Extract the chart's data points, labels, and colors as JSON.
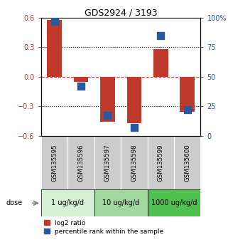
{
  "title": "GDS2924 / 3193",
  "samples": [
    "GSM135595",
    "GSM135596",
    "GSM135597",
    "GSM135598",
    "GSM135599",
    "GSM135600"
  ],
  "log2_ratio": [
    0.58,
    -0.05,
    -0.46,
    -0.47,
    0.28,
    -0.36
  ],
  "percentile_rank": [
    97,
    42,
    17,
    7,
    85,
    22
  ],
  "ylim_left": [
    -0.6,
    0.6
  ],
  "ylim_right": [
    0,
    100
  ],
  "yticks_left": [
    -0.6,
    -0.3,
    0,
    0.3,
    0.6
  ],
  "yticks_right": [
    0,
    25,
    50,
    75,
    100
  ],
  "ytick_labels_right": [
    "0",
    "25",
    "50",
    "75",
    "100%"
  ],
  "hline_dotted": [
    0.3,
    -0.3
  ],
  "hline_dashed_red": 0.0,
  "bar_color": "#c0392b",
  "dot_color": "#2859a0",
  "dose_groups": [
    {
      "label": "1 ug/kg/d",
      "samples": [
        0,
        1
      ],
      "color": "#d4f0d4"
    },
    {
      "label": "10 ug/kg/d",
      "samples": [
        2,
        3
      ],
      "color": "#a0d8a0"
    },
    {
      "label": "1000 ug/kg/d",
      "samples": [
        4,
        5
      ],
      "color": "#50c050"
    }
  ],
  "dose_label": "dose",
  "legend_red": "log2 ratio",
  "legend_blue": "percentile rank within the sample",
  "sample_bg_color": "#cccccc",
  "plot_bg": "#ffffff",
  "left_tick_color": "#c0392b",
  "right_tick_color": "#2859a0",
  "bar_width": 0.55,
  "dot_size": 55
}
